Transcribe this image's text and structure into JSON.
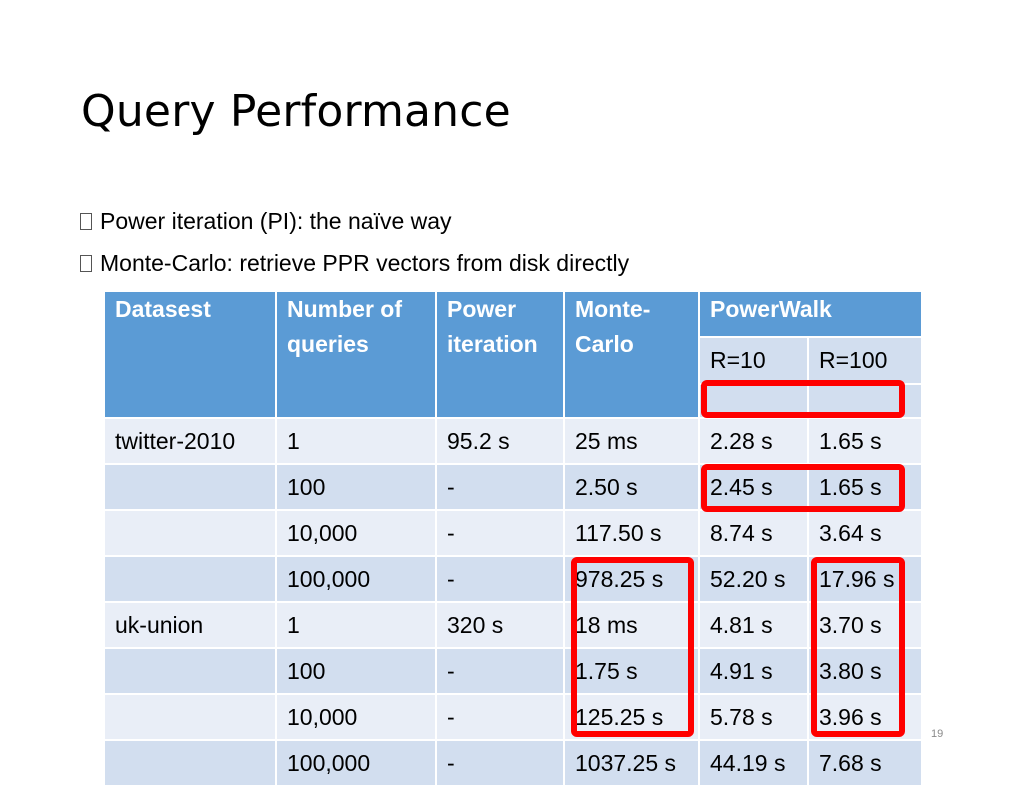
{
  "slide": {
    "title": "Query Performance",
    "bullets": [
      "Power iteration (PI): the naïve way",
      "Monte-Carlo: retrieve PPR vectors from disk directly"
    ],
    "page_number": "19"
  },
  "table": {
    "headers": {
      "dataset": "Datasest",
      "queries": "Number of queries",
      "power_iteration": "Power iteration",
      "monte_carlo": "Monte-Carlo",
      "powerwalk": "PowerWalk",
      "r10": "R=10",
      "r100": "R=100"
    },
    "rows": [
      {
        "dataset": "twitter-2010",
        "queries": "1",
        "pi": "95.2 s",
        "mc": "25 ms",
        "r10": "2.28 s",
        "r100": "1.65 s"
      },
      {
        "dataset": "",
        "queries": "100",
        "pi": "-",
        "mc": "2.50 s",
        "r10": "2.45 s",
        "r100": "1.65 s"
      },
      {
        "dataset": "",
        "queries": "10,000",
        "pi": "-",
        "mc": "117.50 s",
        "r10": "8.74 s",
        "r100": "3.64 s"
      },
      {
        "dataset": "",
        "queries": "100,000",
        "pi": "-",
        "mc": "978.25 s",
        "r10": "52.20 s",
        "r100": "17.96 s"
      },
      {
        "dataset": "uk-union",
        "queries": "1",
        "pi": "320 s",
        "mc": "18 ms",
        "r10": "4.81 s",
        "r100": "3.70 s"
      },
      {
        "dataset": "",
        "queries": "100",
        "pi": "-",
        "mc": "1.75 s",
        "r10": "4.91 s",
        "r100": "3.80 s"
      },
      {
        "dataset": "",
        "queries": "10,000",
        "pi": "-",
        "mc": "125.25 s",
        "r10": "5.78 s",
        "r100": "3.96 s"
      },
      {
        "dataset": "",
        "queries": "100,000",
        "pi": "-",
        "mc": "1037.25 s",
        "r10": "44.19 s",
        "r100": "7.68 s"
      }
    ]
  },
  "colors": {
    "header_bg": "#5b9bd5",
    "row_light": "#e9eef7",
    "row_dark": "#d2deef",
    "highlight": "#ff0000"
  }
}
